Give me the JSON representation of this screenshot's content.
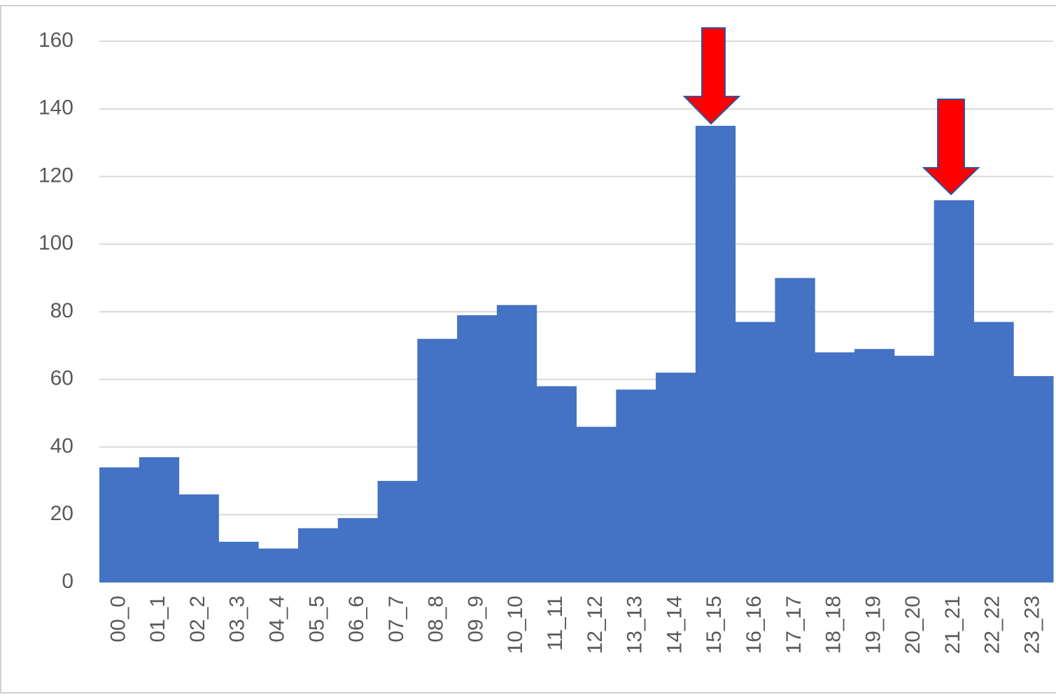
{
  "chart_data": {
    "type": "bar",
    "categories": [
      "00_0",
      "01_1",
      "02_2",
      "03_3",
      "04_4",
      "05_5",
      "06_6",
      "07_7",
      "08_8",
      "09_9",
      "10_10",
      "11_11",
      "12_12",
      "13_13",
      "14_14",
      "15_15",
      "16_16",
      "17_17",
      "18_18",
      "19_19",
      "20_20",
      "21_21",
      "22_22",
      "23_23"
    ],
    "values": [
      34,
      37,
      26,
      12,
      10,
      16,
      19,
      30,
      72,
      79,
      82,
      58,
      46,
      57,
      62,
      135,
      77,
      90,
      68,
      69,
      67,
      113,
      77,
      61
    ],
    "color": "#4472c4",
    "ylim": [
      0,
      160
    ],
    "yticks": [
      0,
      20,
      40,
      60,
      80,
      100,
      120,
      140,
      160
    ],
    "grid": true
  }
}
